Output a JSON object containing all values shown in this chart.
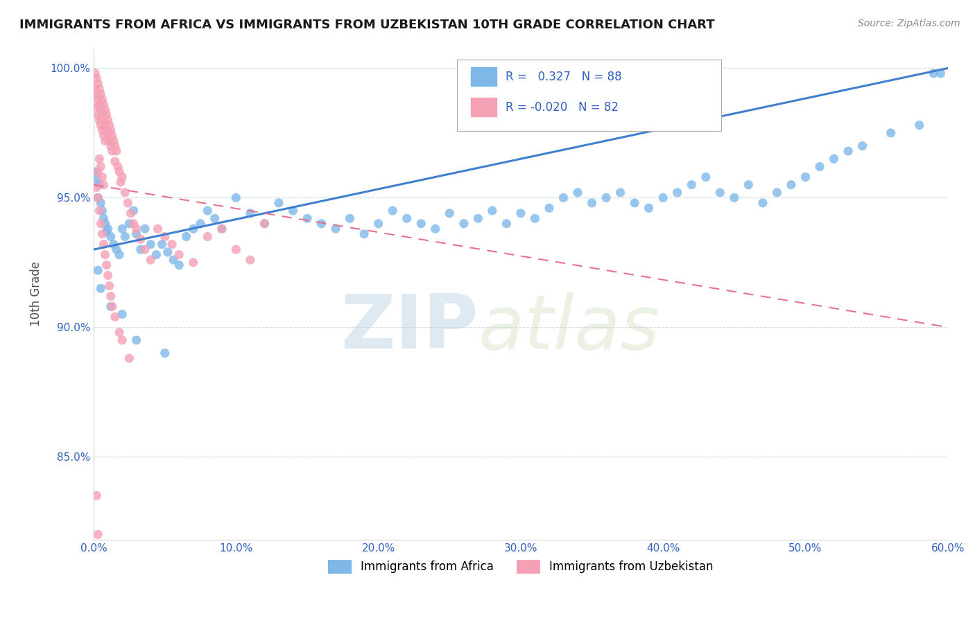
{
  "title": "IMMIGRANTS FROM AFRICA VS IMMIGRANTS FROM UZBEKISTAN 10TH GRADE CORRELATION CHART",
  "source": "Source: ZipAtlas.com",
  "ylabel": "10th Grade",
  "watermark_zip": "ZIP",
  "watermark_atlas": "atlas",
  "xlim": [
    0.0,
    0.6
  ],
  "ylim": [
    0.818,
    1.008
  ],
  "x_ticks": [
    0.0,
    0.1,
    0.2,
    0.3,
    0.4,
    0.5,
    0.6
  ],
  "x_tick_labels": [
    "0.0%",
    "10.0%",
    "20.0%",
    "30.0%",
    "40.0%",
    "50.0%",
    "60.0%"
  ],
  "y_ticks": [
    0.85,
    0.9,
    0.95,
    1.0
  ],
  "y_tick_labels": [
    "85.0%",
    "90.0%",
    "95.0%",
    "100.0%"
  ],
  "legend_label1": "Immigrants from Africa",
  "legend_label2": "Immigrants from Uzbekistan",
  "R1": 0.327,
  "N1": 88,
  "R2": -0.02,
  "N2": 82,
  "color_blue": "#7eb8e8",
  "color_pink": "#f4a0b5",
  "color_blue_text": "#3060c0",
  "color_pink_line": "#e87090",
  "color_blue_line": "#4080d0",
  "grid_color": "#d0dde8",
  "blue_line_x": [
    0.0,
    0.6
  ],
  "blue_line_y": [
    0.93,
    1.0
  ],
  "pink_line_x": [
    0.0,
    0.6
  ],
  "pink_line_y": [
    0.955,
    0.9
  ],
  "scatter_blue_x": [
    0.001,
    0.002,
    0.003,
    0.004,
    0.005,
    0.006,
    0.007,
    0.008,
    0.009,
    0.01,
    0.012,
    0.014,
    0.016,
    0.018,
    0.02,
    0.022,
    0.025,
    0.028,
    0.03,
    0.033,
    0.036,
    0.04,
    0.044,
    0.048,
    0.052,
    0.056,
    0.06,
    0.065,
    0.07,
    0.075,
    0.08,
    0.085,
    0.09,
    0.1,
    0.11,
    0.12,
    0.13,
    0.14,
    0.15,
    0.16,
    0.17,
    0.18,
    0.19,
    0.2,
    0.21,
    0.22,
    0.23,
    0.24,
    0.25,
    0.26,
    0.27,
    0.28,
    0.29,
    0.3,
    0.31,
    0.32,
    0.33,
    0.34,
    0.35,
    0.36,
    0.37,
    0.38,
    0.39,
    0.4,
    0.41,
    0.42,
    0.43,
    0.44,
    0.45,
    0.46,
    0.47,
    0.48,
    0.49,
    0.5,
    0.51,
    0.52,
    0.53,
    0.54,
    0.56,
    0.58,
    0.59,
    0.595,
    0.003,
    0.005,
    0.012,
    0.02,
    0.03,
    0.05
  ],
  "scatter_blue_y": [
    0.96,
    0.957,
    0.95,
    0.955,
    0.948,
    0.945,
    0.942,
    0.94,
    0.937,
    0.938,
    0.935,
    0.932,
    0.93,
    0.928,
    0.938,
    0.935,
    0.94,
    0.945,
    0.936,
    0.93,
    0.938,
    0.932,
    0.928,
    0.932,
    0.929,
    0.926,
    0.924,
    0.935,
    0.938,
    0.94,
    0.945,
    0.942,
    0.938,
    0.95,
    0.944,
    0.94,
    0.948,
    0.945,
    0.942,
    0.94,
    0.938,
    0.942,
    0.936,
    0.94,
    0.945,
    0.942,
    0.94,
    0.938,
    0.944,
    0.94,
    0.942,
    0.945,
    0.94,
    0.944,
    0.942,
    0.946,
    0.95,
    0.952,
    0.948,
    0.95,
    0.952,
    0.948,
    0.946,
    0.95,
    0.952,
    0.955,
    0.958,
    0.952,
    0.95,
    0.955,
    0.948,
    0.952,
    0.955,
    0.958,
    0.962,
    0.965,
    0.968,
    0.97,
    0.975,
    0.978,
    0.998,
    0.998,
    0.922,
    0.915,
    0.908,
    0.905,
    0.895,
    0.89
  ],
  "scatter_pink_x": [
    0.001,
    0.001,
    0.002,
    0.002,
    0.002,
    0.003,
    0.003,
    0.003,
    0.004,
    0.004,
    0.004,
    0.005,
    0.005,
    0.005,
    0.006,
    0.006,
    0.006,
    0.007,
    0.007,
    0.007,
    0.008,
    0.008,
    0.008,
    0.009,
    0.009,
    0.01,
    0.01,
    0.011,
    0.011,
    0.012,
    0.012,
    0.013,
    0.013,
    0.014,
    0.015,
    0.015,
    0.016,
    0.017,
    0.018,
    0.019,
    0.02,
    0.022,
    0.024,
    0.026,
    0.028,
    0.03,
    0.033,
    0.036,
    0.04,
    0.045,
    0.05,
    0.055,
    0.06,
    0.07,
    0.08,
    0.09,
    0.1,
    0.11,
    0.12,
    0.002,
    0.003,
    0.004,
    0.005,
    0.006,
    0.007,
    0.003,
    0.004,
    0.005,
    0.006,
    0.007,
    0.008,
    0.009,
    0.01,
    0.011,
    0.012,
    0.013,
    0.015,
    0.018,
    0.02,
    0.025,
    0.002,
    0.003
  ],
  "scatter_pink_y": [
    0.998,
    0.992,
    0.996,
    0.99,
    0.985,
    0.994,
    0.988,
    0.982,
    0.992,
    0.986,
    0.98,
    0.99,
    0.984,
    0.978,
    0.988,
    0.982,
    0.976,
    0.986,
    0.98,
    0.974,
    0.984,
    0.978,
    0.972,
    0.982,
    0.976,
    0.98,
    0.974,
    0.978,
    0.972,
    0.976,
    0.97,
    0.974,
    0.968,
    0.972,
    0.97,
    0.964,
    0.968,
    0.962,
    0.96,
    0.956,
    0.958,
    0.952,
    0.948,
    0.944,
    0.94,
    0.938,
    0.934,
    0.93,
    0.926,
    0.938,
    0.935,
    0.932,
    0.928,
    0.925,
    0.935,
    0.938,
    0.93,
    0.926,
    0.94,
    0.954,
    0.96,
    0.965,
    0.962,
    0.958,
    0.955,
    0.95,
    0.945,
    0.94,
    0.936,
    0.932,
    0.928,
    0.924,
    0.92,
    0.916,
    0.912,
    0.908,
    0.904,
    0.898,
    0.895,
    0.888,
    0.835,
    0.82
  ]
}
